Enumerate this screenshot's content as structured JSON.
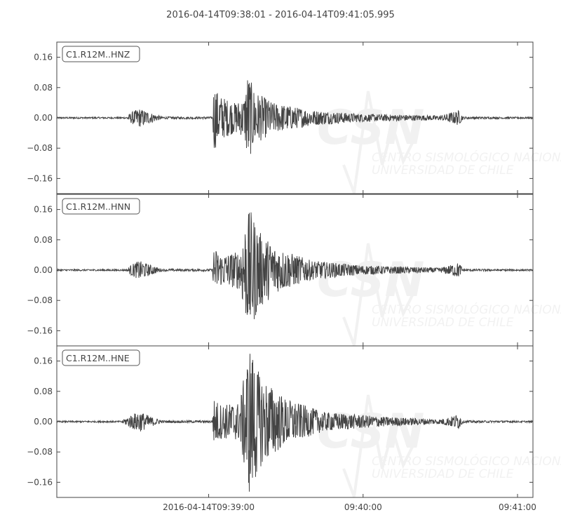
{
  "chart_data": {
    "type": "line",
    "title": "2016-04-14T09:38:01  -  2016-04-14T09:41:05.995",
    "x_range": [
      "09:38:01",
      "09:41:05.995"
    ],
    "x_ticks": [
      {
        "t": "09:39:00",
        "label": "2016-04-14T09:39:00"
      },
      {
        "t": "09:40:00",
        "label": "09:40:00"
      },
      {
        "t": "09:41:00",
        "label": "09:41:00"
      }
    ],
    "ylim": [
      -0.2,
      0.2
    ],
    "y_ticks": [
      0.16,
      0.08,
      0.0,
      -0.08,
      -0.16
    ],
    "y_tick_labels": [
      "0.16",
      "0.08",
      "0.00",
      "−0.08",
      "−0.16"
    ],
    "trace_color": "#444444",
    "watermark": {
      "logo": "CSN",
      "line1": "CENTRO SISMOLÓGICO NACIONAL",
      "line2": "UNIVERSIDAD DE CHILE"
    },
    "series": [
      {
        "name": "C1.R12M..HNZ",
        "envelope": [
          [
            "09:38:01",
            0.002
          ],
          [
            "09:38:28",
            0.002
          ],
          [
            "09:38:30",
            0.015
          ],
          [
            "09:38:33",
            0.025
          ],
          [
            "09:38:38",
            0.012
          ],
          [
            "09:38:42",
            0.003
          ],
          [
            "09:39:01.5",
            0.003
          ],
          [
            "09:39:02",
            0.09
          ],
          [
            "09:39:04",
            0.06
          ],
          [
            "09:39:10",
            0.04
          ],
          [
            "09:39:14",
            0.05
          ],
          [
            "09:39:15",
            0.12
          ],
          [
            "09:39:18",
            0.07
          ],
          [
            "09:39:25",
            0.04
          ],
          [
            "09:39:40",
            0.02
          ],
          [
            "09:40:00",
            0.01
          ],
          [
            "09:40:30",
            0.006
          ],
          [
            "09:40:35",
            0.015
          ],
          [
            "09:40:37",
            0.02
          ],
          [
            "09:40:39",
            0.003
          ],
          [
            "09:41:06",
            0.002
          ]
        ]
      },
      {
        "name": "C1.R12M..HNN",
        "envelope": [
          [
            "09:38:01",
            0.002
          ],
          [
            "09:38:28",
            0.002
          ],
          [
            "09:38:30",
            0.015
          ],
          [
            "09:38:33",
            0.025
          ],
          [
            "09:38:38",
            0.012
          ],
          [
            "09:38:42",
            0.003
          ],
          [
            "09:39:01.5",
            0.003
          ],
          [
            "09:39:02",
            0.06
          ],
          [
            "09:39:05",
            0.04
          ],
          [
            "09:39:12",
            0.05
          ],
          [
            "09:39:14",
            0.12
          ],
          [
            "09:39:16",
            0.16
          ],
          [
            "09:39:20",
            0.1
          ],
          [
            "09:39:26",
            0.06
          ],
          [
            "09:39:40",
            0.025
          ],
          [
            "09:40:00",
            0.012
          ],
          [
            "09:40:30",
            0.006
          ],
          [
            "09:40:35",
            0.015
          ],
          [
            "09:40:37",
            0.02
          ],
          [
            "09:40:39",
            0.003
          ],
          [
            "09:41:06",
            0.002
          ]
        ]
      },
      {
        "name": "C1.R12M..HNE",
        "envelope": [
          [
            "09:38:01",
            0.002
          ],
          [
            "09:38:26",
            0.002
          ],
          [
            "09:38:30",
            0.018
          ],
          [
            "09:38:33",
            0.028
          ],
          [
            "09:38:38",
            0.012
          ],
          [
            "09:38:42",
            0.003
          ],
          [
            "09:39:01.5",
            0.003
          ],
          [
            "09:39:02",
            0.06
          ],
          [
            "09:39:05",
            0.045
          ],
          [
            "09:39:12",
            0.05
          ],
          [
            "09:39:14",
            0.13
          ],
          [
            "09:39:16",
            0.2
          ],
          [
            "09:39:20",
            0.12
          ],
          [
            "09:39:30",
            0.06
          ],
          [
            "09:39:45",
            0.025
          ],
          [
            "09:40:10",
            0.012
          ],
          [
            "09:40:30",
            0.006
          ],
          [
            "09:40:35",
            0.015
          ],
          [
            "09:40:37",
            0.02
          ],
          [
            "09:40:39",
            0.003
          ],
          [
            "09:41:06",
            0.002
          ]
        ]
      }
    ]
  }
}
